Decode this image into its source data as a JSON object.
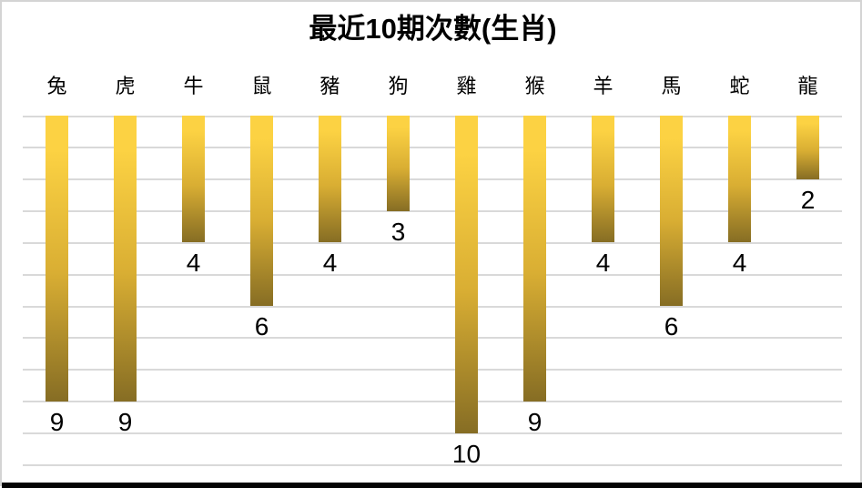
{
  "chart_data": {
    "type": "bar",
    "orientation": "hanging-vertical",
    "title": "最近10期次數(生肖)",
    "categories": [
      "兔",
      "虎",
      "牛",
      "鼠",
      "豬",
      "狗",
      "雞",
      "猴",
      "羊",
      "馬",
      "蛇",
      "龍"
    ],
    "values": [
      9,
      9,
      4,
      6,
      4,
      3,
      10,
      9,
      4,
      6,
      4,
      2
    ],
    "xlabel": "",
    "ylabel": "",
    "ylim": [
      0,
      11
    ],
    "grid": true,
    "gridline_step": 1,
    "legend": "none",
    "data_labels": "below-bar-end"
  },
  "colors": {
    "bar_gradient_top": "#FCD243",
    "bar_gradient_mid": "#D9AE33",
    "bar_gradient_bottom": "#866D24",
    "gridline": "#D9D9D9",
    "frame_border": "#D4D4D4",
    "bottom_strip": "#040404",
    "text": "#000000",
    "background": "#FFFFFF"
  }
}
